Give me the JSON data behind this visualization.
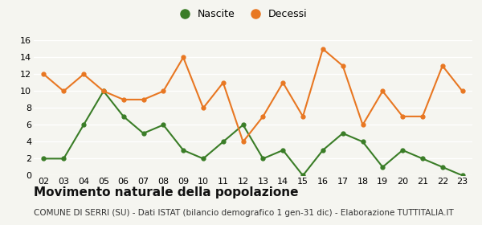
{
  "years": [
    "02",
    "03",
    "04",
    "05",
    "06",
    "07",
    "08",
    "09",
    "10",
    "11",
    "12",
    "13",
    "14",
    "15",
    "16",
    "17",
    "18",
    "19",
    "20",
    "21",
    "22",
    "23"
  ],
  "nascite": [
    2,
    2,
    6,
    10,
    7,
    5,
    6,
    3,
    2,
    4,
    6,
    2,
    3,
    0,
    3,
    5,
    4,
    1,
    3,
    2,
    1,
    0
  ],
  "decessi": [
    12,
    10,
    12,
    10,
    9,
    9,
    10,
    14,
    8,
    11,
    4,
    7,
    11,
    7,
    15,
    13,
    6,
    10,
    7,
    7,
    13,
    10
  ],
  "nascite_color": "#3a7d27",
  "decessi_color": "#e87722",
  "ylim": [
    0,
    16
  ],
  "yticks": [
    0,
    2,
    4,
    6,
    8,
    10,
    12,
    14,
    16
  ],
  "title": "Movimento naturale della popolazione",
  "subtitle": "COMUNE DI SERRI (SU) - Dati ISTAT (bilancio demografico 1 gen-31 dic) - Elaborazione TUTTITALIA.IT",
  "legend_nascite": "Nascite",
  "legend_decessi": "Decessi",
  "background_color": "#f5f5f0",
  "grid_color": "#ffffff",
  "title_fontsize": 11,
  "subtitle_fontsize": 7.5,
  "tick_fontsize": 8,
  "legend_fontsize": 9
}
